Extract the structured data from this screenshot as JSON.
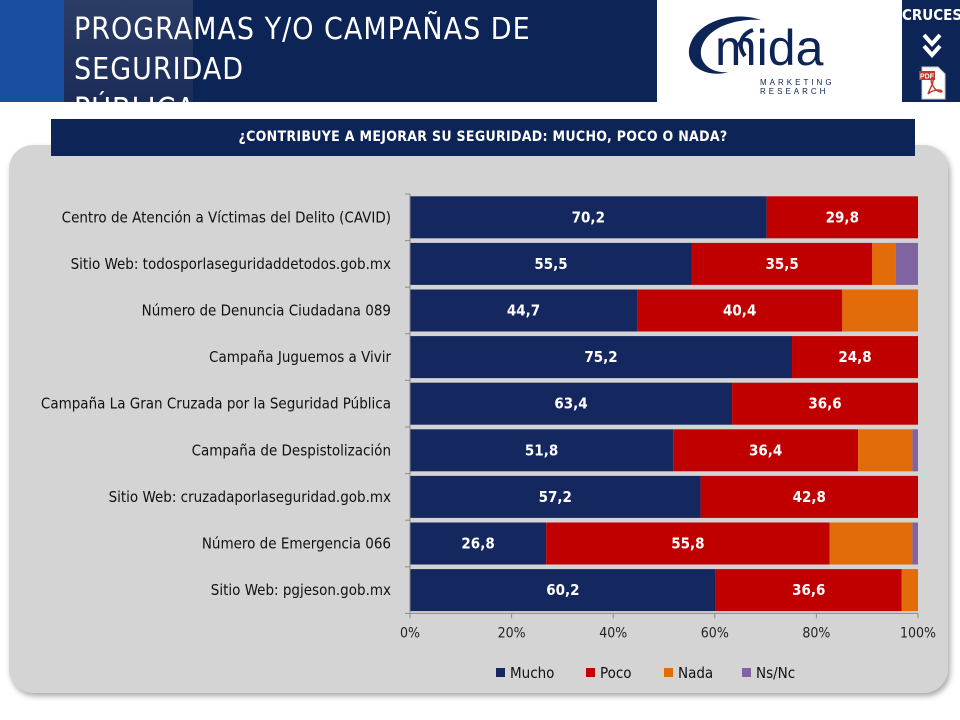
{
  "header": {
    "title_line1": "PROGRAMAS Y/O CAMPAÑAS DE SEGURIDAD",
    "title_line2": "PÚBLICA",
    "logo_text": "mida",
    "logo_subtitle": "MARKETING RESEARCH",
    "cruces_label": "CRUCES",
    "pdf_label": "PDF"
  },
  "question": "¿CONTRIBUYE A MEJORAR SU SEGURIDAD: MUCHO, POCO O NADA?",
  "colors": {
    "Mucho": "#14285f",
    "Poco": "#c00000",
    "Nada": "#e36c0a",
    "Ns/Nc": "#8064a2",
    "header": "#0d2456"
  },
  "chart_data": {
    "type": "bar",
    "orientation": "horizontal",
    "stacked": "percent",
    "categories": [
      "Centro de Atención a Víctimas del Delito (CAVID)",
      "Sitio Web: todosporlaseguridaddetodos.gob.mx",
      "Número de Denuncia Ciudadana 089",
      "Campaña Juguemos a Vivir",
      "Campaña La Gran Cruzada por la Seguridad Pública",
      "Campaña de Despistolización",
      "Sitio Web: cruzadaporlaseguridad.gob.mx",
      "Número de Emergencia 066",
      "Sitio Web: pgjeson.gob.mx"
    ],
    "series": [
      {
        "name": "Mucho",
        "values": [
          70.2,
          55.5,
          44.7,
          75.2,
          63.4,
          51.8,
          57.2,
          26.8,
          60.2
        ],
        "labels": [
          "70,2",
          "55,5",
          "44,7",
          "75,2",
          "63,4",
          "51,8",
          "57,2",
          "26,8",
          "60,2"
        ]
      },
      {
        "name": "Poco",
        "values": [
          29.8,
          35.5,
          40.4,
          24.8,
          36.6,
          36.4,
          42.8,
          55.8,
          36.6
        ],
        "labels": [
          "29,8",
          "35,5",
          "40,4",
          "24,8",
          "36,6",
          "36,4",
          "42,8",
          "55,8",
          "36,6"
        ]
      },
      {
        "name": "Nada",
        "values": [
          0,
          4.6,
          14.9,
          0,
          0,
          10.7,
          0,
          16.3,
          3.2
        ],
        "labels": [
          "",
          "",
          "",
          "",
          "",
          "",
          "",
          "",
          ""
        ]
      },
      {
        "name": "Ns/Nc",
        "values": [
          0,
          4.4,
          0,
          0,
          0,
          1.1,
          0,
          1.1,
          0
        ],
        "labels": [
          "",
          "",
          "",
          "",
          "",
          "",
          "",
          "",
          ""
        ]
      }
    ],
    "x_ticks": [
      "0%",
      "20%",
      "40%",
      "60%",
      "80%",
      "100%"
    ],
    "xlim": [
      0,
      100
    ],
    "legend_position": "bottom",
    "grid": false
  }
}
